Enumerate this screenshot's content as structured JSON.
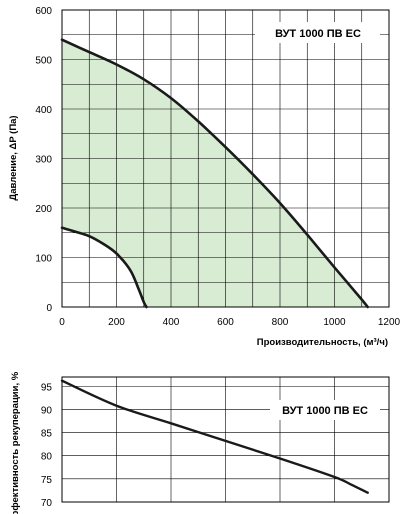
{
  "chart_data": [
    {
      "type": "area",
      "title": "",
      "xlabel": "Производительность, (м³/ч)",
      "ylabel": "Давление, ΔP (Па)",
      "xlim": [
        0,
        1200
      ],
      "ylim": [
        0,
        600
      ],
      "x_ticks": [
        "0",
        "200",
        "400",
        "600",
        "800",
        "1000",
        "1200"
      ],
      "y_ticks": [
        "0",
        "100",
        "200",
        "300",
        "400",
        "500",
        "600"
      ],
      "grid": true,
      "fill_color": "#d7ecd2",
      "curve_color": "#1a1a1a",
      "legend": "ВУТ 1000 ПВ ЕС",
      "legend_position": "top-right",
      "series": [
        {
          "role": "max curve",
          "x": [
            0,
            100,
            200,
            300,
            400,
            500,
            600,
            700,
            800,
            900,
            1000,
            1100,
            1122
          ],
          "y": [
            540,
            515,
            490,
            460,
            422,
            375,
            323,
            268,
            210,
            146,
            80,
            15,
            0
          ]
        },
        {
          "role": "min curve",
          "x": [
            0,
            50,
            100,
            150,
            200,
            250,
            280,
            300,
            310
          ],
          "y": [
            160,
            152,
            143,
            128,
            108,
            75,
            38,
            10,
            0
          ]
        }
      ]
    },
    {
      "type": "line",
      "title": "",
      "xlabel": "",
      "ylabel": "эффективность рекуперации, %",
      "xlim": [
        0,
        1200
      ],
      "ylim": [
        70,
        97
      ],
      "y_ticks": [
        "70",
        "75",
        "80",
        "85",
        "90",
        "95"
      ],
      "grid": true,
      "legend": "ВУТ 1000 ПВ ЕС",
      "legend_position": "top-right",
      "series": [
        {
          "x": [
            0,
            200,
            400,
            600,
            800,
            1000,
            1060,
            1122
          ],
          "y": [
            96.2,
            90.8,
            87.0,
            83.2,
            79.4,
            75.4,
            73.8,
            72.0
          ]
        }
      ]
    }
  ]
}
